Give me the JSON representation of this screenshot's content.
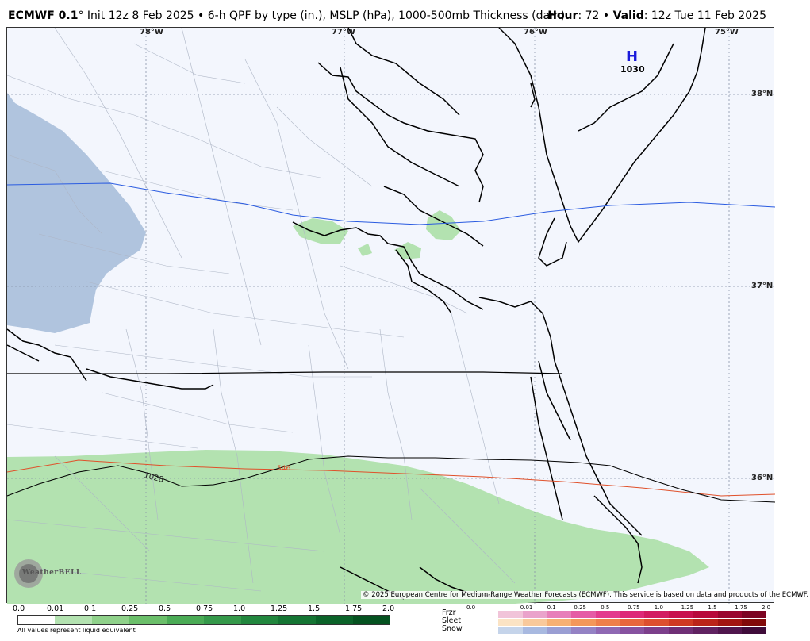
{
  "header": {
    "model": "ECMWF 0.1",
    "degree_symbol": "°",
    "init": " Init 12z 8 Feb 2025 • 6-h QPF by type (in.), MSLP (hPa), 1000-500mb Thickness (dam)",
    "hour_label": "Hour",
    "hour_value": ": 72 • ",
    "valid_label": "Valid",
    "valid_value": ": 12z Tue 11 Feb 2025"
  },
  "map": {
    "longitudes": [
      "78°W",
      "77°W",
      "76°W",
      "75°W"
    ],
    "latitudes": [
      "38°N",
      "37°N",
      "36°N"
    ],
    "high": {
      "symbol": "H",
      "value": "1030"
    },
    "isobar_label": "1028",
    "thickness_label": "546",
    "colors": {
      "background": "#f3f6fd",
      "rain": "#b3e2b0",
      "snow": "#b0c4de",
      "isobar": "#000000",
      "thickness_546": "#e0502a",
      "thickness_blue": "#2a5be0"
    }
  },
  "copyright": "© 2025 European Centre for Medium-Range Weather Forecasts (ECMWF). This service is based on data and products of the ECMWF.",
  "logo": {
    "text": "WeatherBELL"
  },
  "legend_rain": {
    "ticks": [
      "0.0",
      "0.01",
      "0.1",
      "0.25",
      "0.5",
      "0.75",
      "1.0",
      "1.25",
      "1.5",
      "1.75",
      "2.0"
    ],
    "colors": [
      "#ffffff",
      "#b3e2b0",
      "#8fd18a",
      "#6bbf6a",
      "#4aab55",
      "#35994a",
      "#22873e",
      "#157533",
      "#0b6329",
      "#055220",
      "#023d16"
    ],
    "note": "All values represent liquid equivalent"
  },
  "legend_ptype": {
    "labels": [
      "Frzr",
      "Sleet",
      "Snow"
    ],
    "ticks": [
      "0.0",
      "0.01",
      "0.1",
      "0.25",
      "0.5",
      "0.75",
      "1.0",
      "1.25",
      "1.5",
      "1.75",
      "2.0"
    ],
    "frzr_colors": [
      "#f1c4d9",
      "#eaa3cb",
      "#e77fb9",
      "#e55ba5",
      "#e33c8e",
      "#dd2a78",
      "#d21c61",
      "#c8124d",
      "#b80a3b",
      "#9a062e",
      "#7c0422"
    ],
    "sleet_colors": [
      "#fbe3c4",
      "#f9c99b",
      "#f6b073",
      "#f3975a",
      "#ef7f4b",
      "#e8663c",
      "#dd4f2e",
      "#cf3922",
      "#bb2419",
      "#a21410",
      "#820a0a"
    ],
    "snow_colors": [
      "#c5d4ea",
      "#a8b9e0",
      "#9a9ed3",
      "#9482c4",
      "#8f68b3",
      "#8752a0",
      "#7c3f8b",
      "#6f2f76",
      "#602261",
      "#50164d",
      "#3f0c3a"
    ]
  }
}
